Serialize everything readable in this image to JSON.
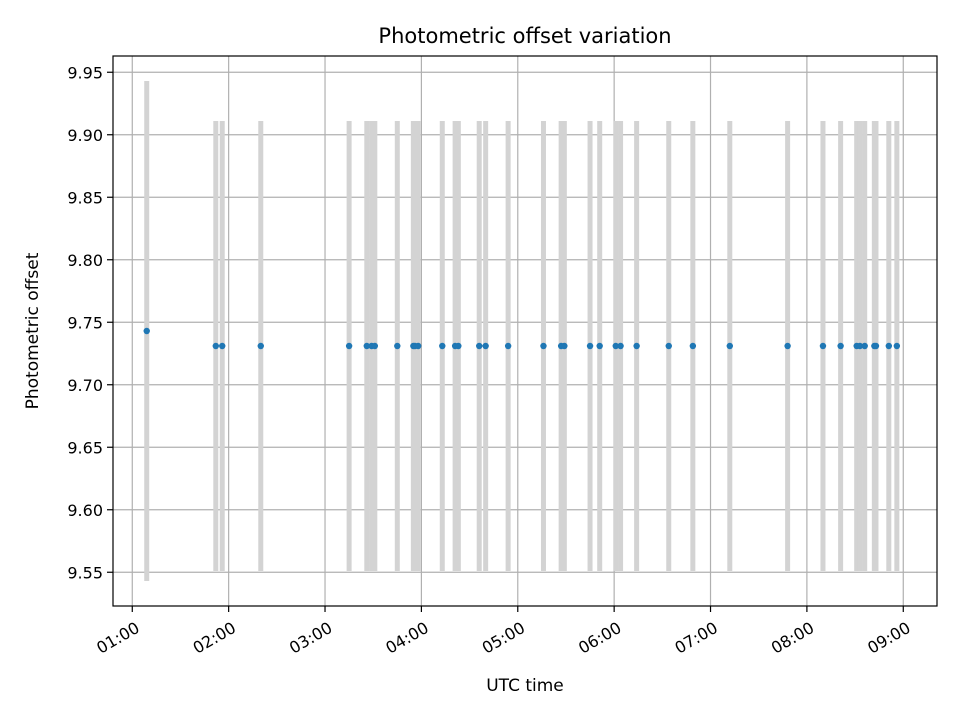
{
  "chart_data": {
    "type": "scatter",
    "title": "Photometric offset variation",
    "xlabel": "UTC time",
    "ylabel": "Photometric offset",
    "xlim": [
      "00:48",
      "09:21"
    ],
    "ylim": [
      9.523,
      9.963
    ],
    "x_ticks": [
      "01:00",
      "02:00",
      "03:00",
      "04:00",
      "05:00",
      "06:00",
      "07:00",
      "08:00",
      "09:00"
    ],
    "y_ticks": [
      9.55,
      9.6,
      9.65,
      9.7,
      9.75,
      9.8,
      9.85,
      9.9,
      9.95
    ],
    "grid": true,
    "errorbar_color": "#d3d3d3",
    "marker_color": "#1f77b4",
    "points": [
      {
        "x": "01:09",
        "y": 9.743,
        "err": 0.2
      },
      {
        "x": "01:52",
        "y": 9.731,
        "err": 0.18
      },
      {
        "x": "01:56",
        "y": 9.731,
        "err": 0.18
      },
      {
        "x": "02:20",
        "y": 9.731,
        "err": 0.18
      },
      {
        "x": "03:15",
        "y": 9.731,
        "err": 0.18
      },
      {
        "x": "03:26",
        "y": 9.731,
        "err": 0.18
      },
      {
        "x": "03:29",
        "y": 9.731,
        "err": 0.18
      },
      {
        "x": "03:31",
        "y": 9.731,
        "err": 0.18
      },
      {
        "x": "03:45",
        "y": 9.731,
        "err": 0.18
      },
      {
        "x": "03:55",
        "y": 9.731,
        "err": 0.18
      },
      {
        "x": "03:56",
        "y": 9.731,
        "err": 0.18
      },
      {
        "x": "03:58",
        "y": 9.731,
        "err": 0.18
      },
      {
        "x": "04:13",
        "y": 9.731,
        "err": 0.18
      },
      {
        "x": "04:21",
        "y": 9.731,
        "err": 0.18
      },
      {
        "x": "04:23",
        "y": 9.731,
        "err": 0.18
      },
      {
        "x": "04:36",
        "y": 9.731,
        "err": 0.18
      },
      {
        "x": "04:40",
        "y": 9.731,
        "err": 0.18
      },
      {
        "x": "04:54",
        "y": 9.731,
        "err": 0.18
      },
      {
        "x": "05:16",
        "y": 9.731,
        "err": 0.18
      },
      {
        "x": "05:27",
        "y": 9.731,
        "err": 0.18
      },
      {
        "x": "05:29",
        "y": 9.731,
        "err": 0.18
      },
      {
        "x": "05:45",
        "y": 9.731,
        "err": 0.18
      },
      {
        "x": "05:51",
        "y": 9.731,
        "err": 0.18
      },
      {
        "x": "06:01",
        "y": 9.731,
        "err": 0.18
      },
      {
        "x": "06:04",
        "y": 9.731,
        "err": 0.18
      },
      {
        "x": "06:14",
        "y": 9.731,
        "err": 0.18
      },
      {
        "x": "06:34",
        "y": 9.731,
        "err": 0.18
      },
      {
        "x": "06:49",
        "y": 9.731,
        "err": 0.18
      },
      {
        "x": "07:12",
        "y": 9.731,
        "err": 0.18
      },
      {
        "x": "07:48",
        "y": 9.731,
        "err": 0.18
      },
      {
        "x": "08:10",
        "y": 9.731,
        "err": 0.18
      },
      {
        "x": "08:21",
        "y": 9.731,
        "err": 0.18
      },
      {
        "x": "08:31",
        "y": 9.731,
        "err": 0.18
      },
      {
        "x": "08:33",
        "y": 9.731,
        "err": 0.18
      },
      {
        "x": "08:36",
        "y": 9.731,
        "err": 0.18
      },
      {
        "x": "08:42",
        "y": 9.731,
        "err": 0.18
      },
      {
        "x": "08:43",
        "y": 9.731,
        "err": 0.18
      },
      {
        "x": "08:51",
        "y": 9.731,
        "err": 0.18
      },
      {
        "x": "08:56",
        "y": 9.731,
        "err": 0.18
      }
    ]
  }
}
